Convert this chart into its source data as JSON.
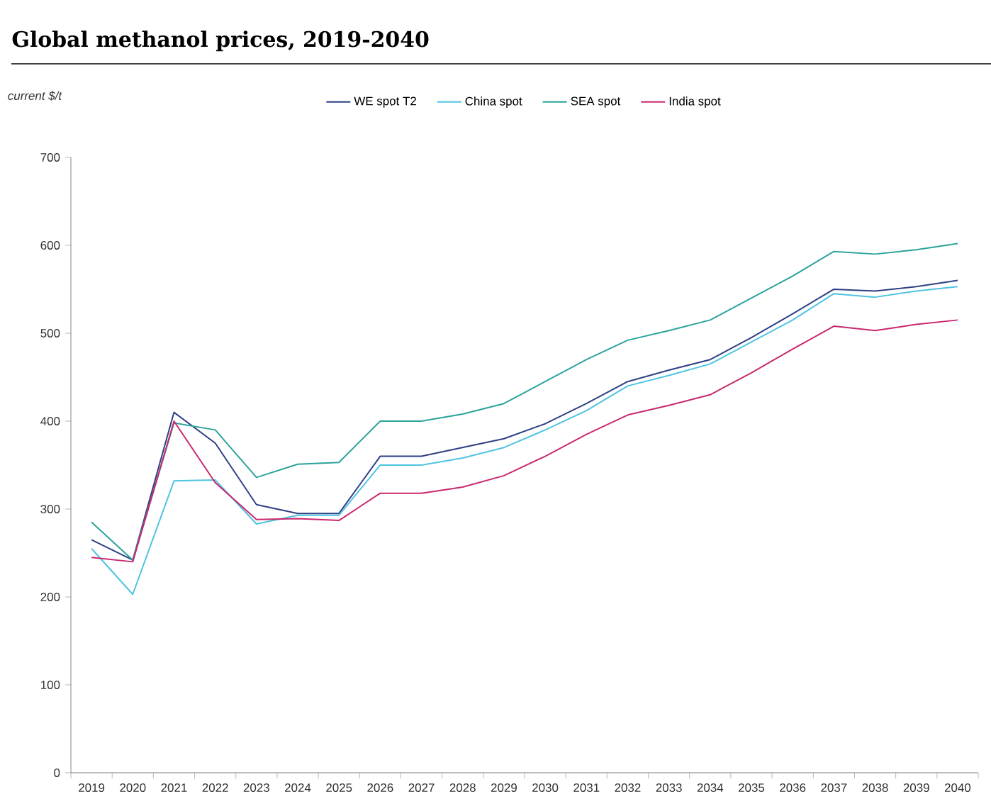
{
  "chart_data": {
    "type": "line",
    "title": "Global methanol prices, 2019-2040",
    "ylabel": "current $/t",
    "categories": [
      "2019",
      "2020",
      "2021",
      "2022",
      "2023",
      "2024",
      "2025",
      "2026",
      "2027",
      "2028",
      "2029",
      "2030",
      "2031",
      "2032",
      "2033",
      "2034",
      "2035",
      "2036",
      "2037",
      "2038",
      "2039",
      "2040"
    ],
    "series": [
      {
        "name": "WE spot T2",
        "color": "#2e3f84",
        "values": [
          265,
          242,
          410,
          375,
          305,
          295,
          295,
          360,
          360,
          370,
          380,
          397,
          420,
          445,
          458,
          470,
          495,
          522,
          550,
          548,
          553,
          560
        ]
      },
      {
        "name": "China spot",
        "color": "#4fc3e0",
        "values": [
          255,
          203,
          332,
          333,
          283,
          293,
          293,
          350,
          350,
          358,
          370,
          390,
          412,
          440,
          452,
          465,
          490,
          515,
          545,
          541,
          548,
          553
        ]
      },
      {
        "name": "SEA spot",
        "color": "#2aa39a",
        "values": [
          285,
          242,
          398,
          390,
          336,
          351,
          353,
          400,
          400,
          408,
          420,
          445,
          470,
          492,
          503,
          515,
          540,
          565,
          593,
          590,
          595,
          602
        ]
      },
      {
        "name": "India spot",
        "color": "#c8286e",
        "values": [
          245,
          240,
          400,
          330,
          288,
          289,
          287,
          318,
          318,
          325,
          338,
          360,
          385,
          407,
          418,
          430,
          455,
          482,
          508,
          503,
          510,
          515
        ]
      }
    ],
    "ylim": [
      0,
      700
    ],
    "yticks": [
      0,
      100,
      200,
      300,
      400,
      500,
      600,
      700
    ],
    "grid": false,
    "legend": "top",
    "marker": "none",
    "line_style": "solid"
  }
}
